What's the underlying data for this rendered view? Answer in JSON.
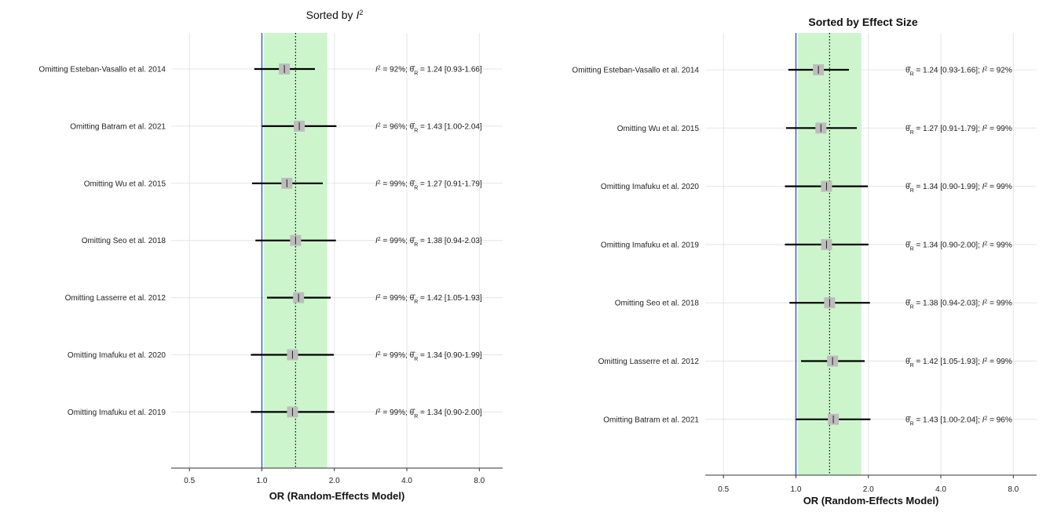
{
  "chart_data": [
    {
      "type": "forest",
      "title": "Sorted by I²",
      "title_style": "plain",
      "xlabel": "OR (Random-Effects Model)",
      "x_scale": "log",
      "xlim": [
        0.42,
        10.0
      ],
      "ticks": [
        0.5,
        1.0,
        2.0,
        4.0,
        8.0
      ],
      "tick_labels": [
        "0.5",
        "1.0",
        "2.0",
        "4.0",
        "8.0"
      ],
      "ci_band": [
        1.02,
        1.87
      ],
      "null_line": 1.0,
      "pooled_line": 1.38,
      "label_order": "i2_first",
      "rows": [
        {
          "label": "Omitting Esteban-Vasallo et al. 2014",
          "est": 1.24,
          "lo": 0.93,
          "hi": 1.66,
          "i2": "92%",
          "ci_text": "1.24 [0.93-1.66]"
        },
        {
          "label": "Omitting Batram et al. 2021",
          "est": 1.43,
          "lo": 1.0,
          "hi": 2.04,
          "i2": "96%",
          "ci_text": "1.43 [1.00-2.04]"
        },
        {
          "label": "Omitting Wu et al. 2015",
          "est": 1.27,
          "lo": 0.91,
          "hi": 1.79,
          "i2": "99%",
          "ci_text": "1.27 [0.91-1.79]"
        },
        {
          "label": "Omitting Seo et al. 2018",
          "est": 1.38,
          "lo": 0.94,
          "hi": 2.03,
          "i2": "99%",
          "ci_text": "1.38 [0.94-2.03]"
        },
        {
          "label": "Omitting Lasserre et al. 2012",
          "est": 1.42,
          "lo": 1.05,
          "hi": 1.93,
          "i2": "99%",
          "ci_text": "1.42 [1.05-1.93]"
        },
        {
          "label": "Omitting Imafuku et al. 2020",
          "est": 1.34,
          "lo": 0.9,
          "hi": 1.99,
          "i2": "99%",
          "ci_text": "1.34 [0.90-1.99]"
        },
        {
          "label": "Omitting Imafuku et al. 2019",
          "est": 1.34,
          "lo": 0.9,
          "hi": 2.0,
          "i2": "99%",
          "ci_text": "1.34 [0.90-2.00]"
        }
      ]
    },
    {
      "type": "forest",
      "title": "Sorted by Effect Size",
      "title_style": "bold",
      "xlabel": "OR (Random-Effects Model)",
      "x_scale": "log",
      "xlim": [
        0.42,
        10.0
      ],
      "ticks": [
        0.5,
        1.0,
        2.0,
        4.0,
        8.0
      ],
      "tick_labels": [
        "0.5",
        "1.0",
        "2.0",
        "4.0",
        "8.0"
      ],
      "ci_band": [
        1.02,
        1.87
      ],
      "null_line": 1.0,
      "pooled_line": 1.38,
      "label_order": "ci_first",
      "rows": [
        {
          "label": "Omitting Esteban-Vasallo et al. 2014",
          "est": 1.24,
          "lo": 0.93,
          "hi": 1.66,
          "i2": "92%",
          "ci_text": "1.24 [0.93-1.66]"
        },
        {
          "label": "Omitting Wu et al. 2015",
          "est": 1.27,
          "lo": 0.91,
          "hi": 1.79,
          "i2": "99%",
          "ci_text": "1.27 [0.91-1.79]"
        },
        {
          "label": "Omitting Imafuku et al. 2020",
          "est": 1.34,
          "lo": 0.9,
          "hi": 1.99,
          "i2": "99%",
          "ci_text": "1.34 [0.90-1.99]"
        },
        {
          "label": "Omitting Imafuku et al. 2019",
          "est": 1.34,
          "lo": 0.9,
          "hi": 2.0,
          "i2": "99%",
          "ci_text": "1.34 [0.90-2.00]"
        },
        {
          "label": "Omitting Seo et al. 2018",
          "est": 1.38,
          "lo": 0.94,
          "hi": 2.03,
          "i2": "99%",
          "ci_text": "1.38 [0.94-2.03]"
        },
        {
          "label": "Omitting Lasserre et al. 2012",
          "est": 1.42,
          "lo": 1.05,
          "hi": 1.93,
          "i2": "99%",
          "ci_text": "1.42 [1.05-1.93]"
        },
        {
          "label": "Omitting Batram et al. 2021",
          "est": 1.43,
          "lo": 1.0,
          "hi": 2.04,
          "i2": "96%",
          "ci_text": "1.43 [1.00-2.04]"
        }
      ]
    }
  ],
  "colors": {
    "band": "#ccf5cc",
    "null_line": "#3b5bdb",
    "grid": "#e4e4e4",
    "marker": "#bdbdbd",
    "ci": "#000000",
    "text": "#222222"
  }
}
